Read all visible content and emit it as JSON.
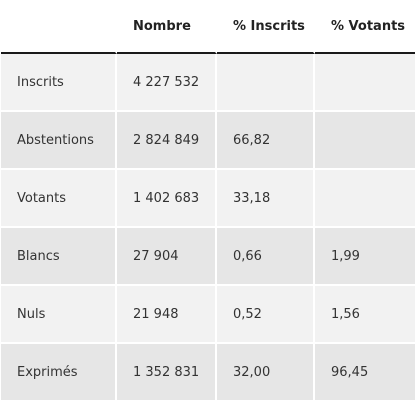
{
  "table": {
    "headers": [
      "",
      "Nombre",
      "% Inscrits",
      "% Votants"
    ],
    "rows": [
      {
        "label": "Inscrits",
        "nombre": "4 227 532",
        "pct_inscrits": "",
        "pct_votants": ""
      },
      {
        "label": "Abstentions",
        "nombre": "2 824 849",
        "pct_inscrits": "66,82",
        "pct_votants": ""
      },
      {
        "label": "Votants",
        "nombre": "1 402 683",
        "pct_inscrits": "33,18",
        "pct_votants": ""
      },
      {
        "label": "Blancs",
        "nombre": "27 904",
        "pct_inscrits": "0,66",
        "pct_votants": "1,99"
      },
      {
        "label": "Nuls",
        "nombre": "21 948",
        "pct_inscrits": "0,52",
        "pct_votants": "1,56"
      },
      {
        "label": "Exprimés",
        "nombre": "1 352 831",
        "pct_inscrits": "32,00",
        "pct_votants": "96,45"
      }
    ]
  }
}
